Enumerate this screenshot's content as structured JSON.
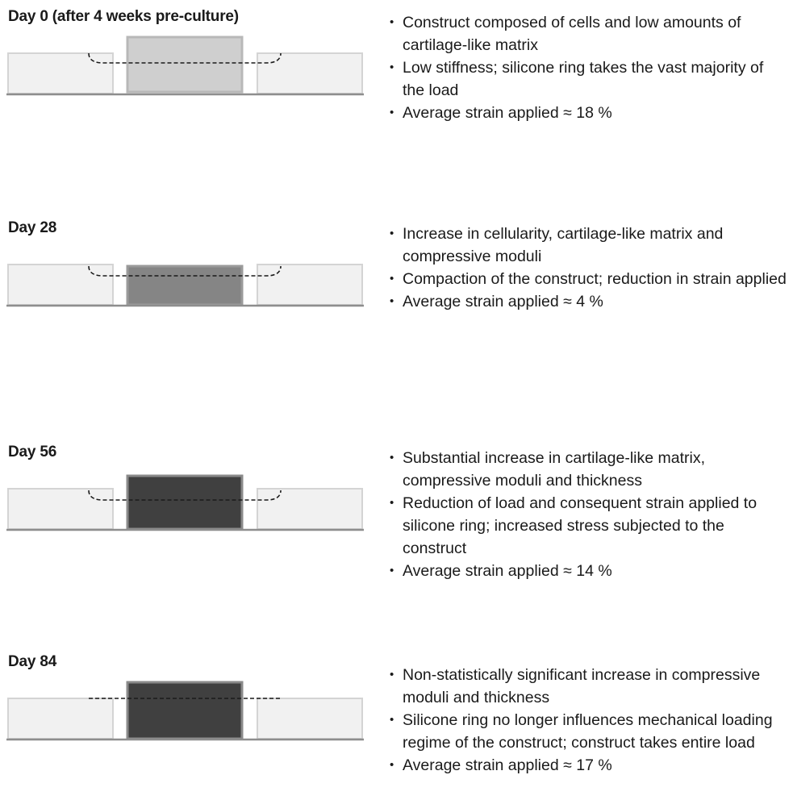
{
  "stages": [
    {
      "title": "Day 0 (after 4 weeks pre-culture)",
      "construct_color": "#cfcfcf",
      "construct_border": "#b8b8b8",
      "curve": "curved",
      "bullets": [
        "Construct composed of cells and low amounts of cartilage-like matrix",
        "Low stiffness; silicone ring takes the vast majority of the load",
        "Average strain applied ≈ 18 %"
      ]
    },
    {
      "title": "Day 28",
      "construct_color": "#858585",
      "construct_border": "#9a9a9a",
      "curve": "curved",
      "bullets": [
        "Increase in cellularity, cartilage-like matrix and compressive moduli",
        "Compaction of the construct; reduction in strain applied",
        "Average strain applied ≈ 4 %"
      ]
    },
    {
      "title": "Day 56",
      "construct_color": "#404040",
      "construct_border": "#8a8a8a",
      "curve": "curved",
      "bullets": [
        "Substantial increase in cartilage-like matrix, compressive moduli and thickness",
        "Reduction of load and consequent strain applied to silicone ring; increased stress subjected to the construct",
        "Average strain applied ≈ 14 %"
      ]
    },
    {
      "title": "Day 84",
      "construct_color": "#404040",
      "construct_border": "#8a8a8a",
      "curve": "flat",
      "bullets": [
        "Non-statistically significant increase in compressive moduli and thickness",
        "Silicone ring no longer influences mechanical loading regime of the construct; construct takes entire load",
        "Average strain applied ≈ 17 %"
      ]
    }
  ],
  "colors": {
    "ring_fill": "#f1f1f1",
    "ring_border": "#d4d4d4",
    "base_line": "#8e8e8e",
    "dash_line": "#1a1a1a"
  }
}
